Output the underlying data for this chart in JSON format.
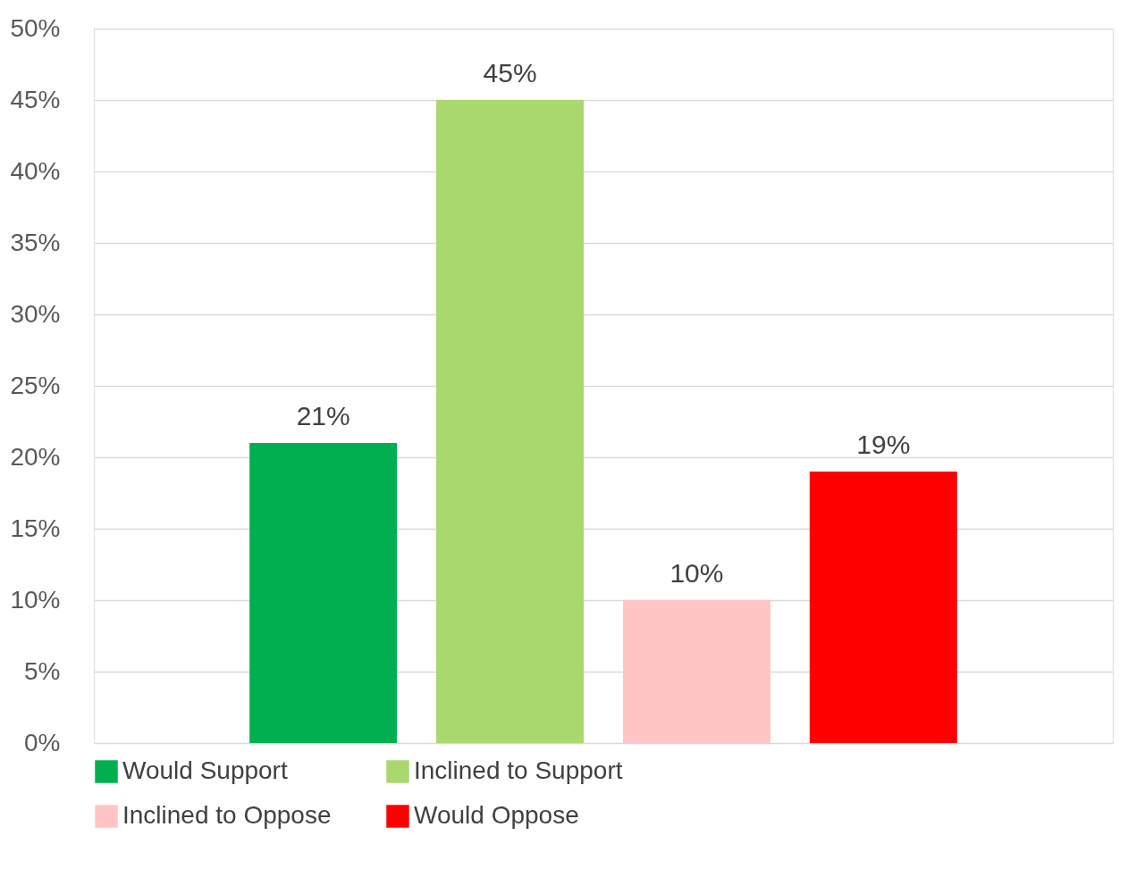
{
  "chart_data": {
    "type": "bar",
    "categories": [
      null
    ],
    "series": [
      {
        "name": "Would Support",
        "color": "#00b050",
        "values": [
          21
        ],
        "value_labels": [
          "21%"
        ]
      },
      {
        "name": "Inclined to Support",
        "color": "#a9d86e",
        "values": [
          45
        ],
        "value_labels": [
          "45%"
        ]
      },
      {
        "name": "Inclined to Oppose",
        "color": "#ffc4c4",
        "values": [
          10
        ],
        "value_labels": [
          "10%"
        ]
      },
      {
        "name": "Would Oppose",
        "color": "#ff0000",
        "values": [
          19
        ],
        "value_labels": [
          "19%"
        ]
      }
    ],
    "ylim": [
      0,
      50
    ],
    "yticks": [
      {
        "value": 0,
        "label": "0%"
      },
      {
        "value": 5,
        "label": "5%"
      },
      {
        "value": 10,
        "label": "10%"
      },
      {
        "value": 15,
        "label": "15%"
      },
      {
        "value": 20,
        "label": "20%"
      },
      {
        "value": 25,
        "label": "25%"
      },
      {
        "value": 30,
        "label": "30%"
      },
      {
        "value": 35,
        "label": "35%"
      },
      {
        "value": 40,
        "label": "40%"
      },
      {
        "value": 45,
        "label": "45%"
      },
      {
        "value": 50,
        "label": "50%"
      }
    ],
    "grid": "y",
    "legend": "bottom",
    "tick_labels": "y"
  }
}
